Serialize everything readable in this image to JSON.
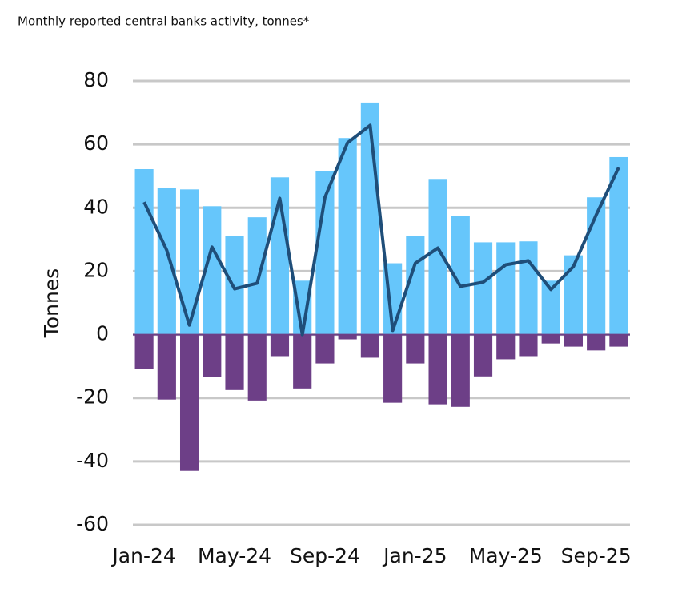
{
  "chart_data": {
    "type": "bar_line",
    "title": "Monthly reported central banks activity, tonnes*",
    "y_label": "Tonnes",
    "categories": [
      "Jan-24",
      null,
      null,
      null,
      "May-24",
      null,
      null,
      null,
      "Sep-24",
      null,
      null,
      null,
      "Jan-25",
      null,
      null,
      null,
      "May-25",
      null,
      null,
      null,
      "Sep-25",
      null
    ],
    "series": [
      {
        "kind": "bar",
        "color": "#66c6fb",
        "values": [
          52.2,
          46.3,
          45.8,
          40.5,
          31.1,
          37,
          49.6,
          17,
          51.6,
          62,
          73.2,
          22.5,
          31.1,
          49.1,
          37.5,
          29.1,
          29.1,
          29.4,
          17,
          25,
          43.3,
          56
        ]
      },
      {
        "kind": "bar",
        "color": "#6d3f87",
        "values": [
          -10.9,
          -20.5,
          -43,
          -13.4,
          -17.5,
          -20.8,
          -6.8,
          -17,
          -9.1,
          -1.5,
          -7.3,
          -21.5,
          -9.1,
          -22,
          -22.8,
          -13.2,
          -7.8,
          -6.8,
          -2.8,
          -3.8,
          -5,
          -3.8
        ]
      },
      {
        "kind": "line",
        "color": "#1f4e79",
        "values": [
          41.8,
          26.6,
          3,
          27.6,
          14.4,
          16.2,
          43,
          0,
          43.3,
          60.5,
          66,
          1.3,
          22.5,
          27.3,
          15.2,
          16.5,
          22,
          23.3,
          14.2,
          21.5,
          37.7,
          52.7
        ]
      }
    ],
    "ylim": [
      -60,
      80
    ],
    "yticks": [
      -60,
      -40,
      -20,
      0,
      20,
      40,
      60,
      80
    ],
    "grid": true
  }
}
